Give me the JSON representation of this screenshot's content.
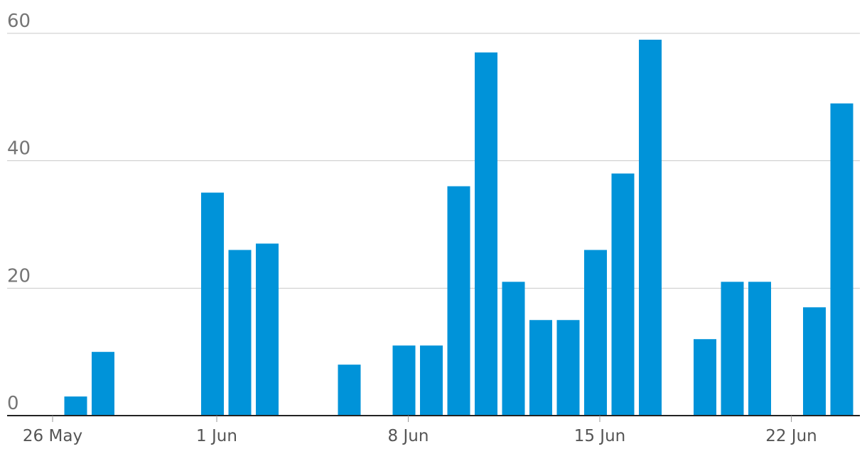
{
  "chart_data": {
    "type": "bar",
    "color": "#0093d9",
    "ylim": [
      0,
      60
    ],
    "y_ticks": [
      0,
      20,
      40,
      60
    ],
    "grid": true,
    "x_range": [
      "2020-05-24",
      "2020-06-24"
    ],
    "x_ticks": [
      {
        "date": "2020-05-26",
        "label": "26 May"
      },
      {
        "date": "2020-06-01",
        "label": "1 Jun"
      },
      {
        "date": "2020-06-08",
        "label": "8 Jun"
      },
      {
        "date": "2020-06-15",
        "label": "15 Jun"
      },
      {
        "date": "2020-06-22",
        "label": "22 Jun"
      }
    ],
    "bars": [
      {
        "date": "2020-05-27",
        "value": 3
      },
      {
        "date": "2020-05-28",
        "value": 10
      },
      {
        "date": "2020-06-01",
        "value": 35
      },
      {
        "date": "2020-06-02",
        "value": 26
      },
      {
        "date": "2020-06-03",
        "value": 27
      },
      {
        "date": "2020-06-06",
        "value": 8
      },
      {
        "date": "2020-06-08",
        "value": 11
      },
      {
        "date": "2020-06-09",
        "value": 11
      },
      {
        "date": "2020-06-10",
        "value": 36
      },
      {
        "date": "2020-06-11",
        "value": 57
      },
      {
        "date": "2020-06-12",
        "value": 21
      },
      {
        "date": "2020-06-13",
        "value": 15
      },
      {
        "date": "2020-06-14",
        "value": 15
      },
      {
        "date": "2020-06-15",
        "value": 26
      },
      {
        "date": "2020-06-16",
        "value": 38
      },
      {
        "date": "2020-06-17",
        "value": 59
      },
      {
        "date": "2020-06-19",
        "value": 12
      },
      {
        "date": "2020-06-20",
        "value": 21
      },
      {
        "date": "2020-06-21",
        "value": 21
      },
      {
        "date": "2020-06-23",
        "value": 17
      },
      {
        "date": "2020-06-24",
        "value": 49
      }
    ]
  }
}
